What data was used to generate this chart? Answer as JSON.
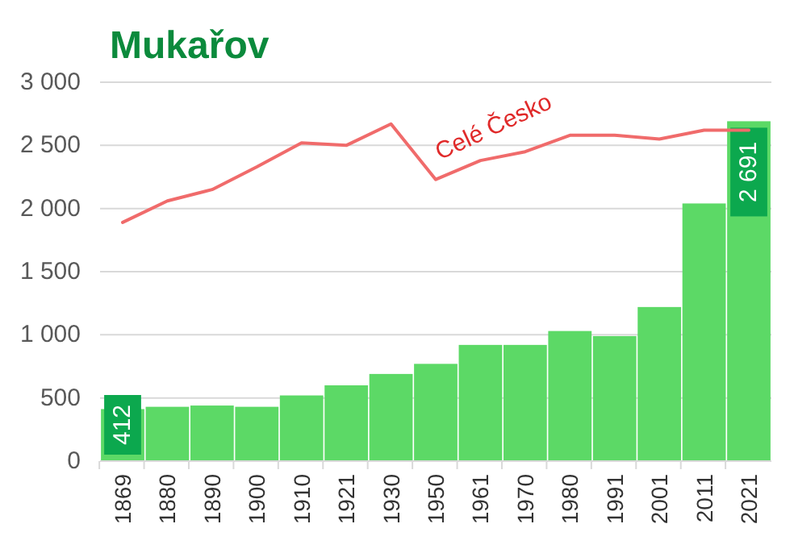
{
  "chart_data": {
    "type": "bar",
    "title": "Mukařov",
    "categories": [
      "1869",
      "1880",
      "1890",
      "1900",
      "1910",
      "1921",
      "1930",
      "1950",
      "1961",
      "1970",
      "1980",
      "1991",
      "2001",
      "2011",
      "2021"
    ],
    "series": [
      {
        "color": "#5cd966",
        "values": [
          412,
          430,
          440,
          430,
          520,
          600,
          690,
          770,
          920,
          920,
          1030,
          990,
          1220,
          2040,
          2691
        ],
        "value_labels": [
          "412",
          null,
          null,
          null,
          null,
          null,
          null,
          null,
          null,
          null,
          null,
          null,
          null,
          null,
          "2 691"
        ]
      },
      {
        "type": "line",
        "name": "Celé Česko",
        "color": "#f06b6b",
        "values": [
          1890,
          2060,
          2150,
          2330,
          2520,
          2500,
          2670,
          2230,
          2380,
          2450,
          2580,
          2580,
          2550,
          2620,
          2620
        ]
      }
    ],
    "ylim": [
      0,
      3000
    ],
    "yticks": [
      0,
      {
        "value": 500,
        "label": "500"
      },
      {
        "value": 1000,
        "label": "1 000"
      },
      {
        "value": 1500,
        "label": "1 500"
      },
      {
        "value": 2000,
        "label": "2 000"
      },
      {
        "value": 2500,
        "label": "2 500"
      },
      {
        "value": 3000,
        "label": "3 000"
      }
    ],
    "grid": "y"
  }
}
